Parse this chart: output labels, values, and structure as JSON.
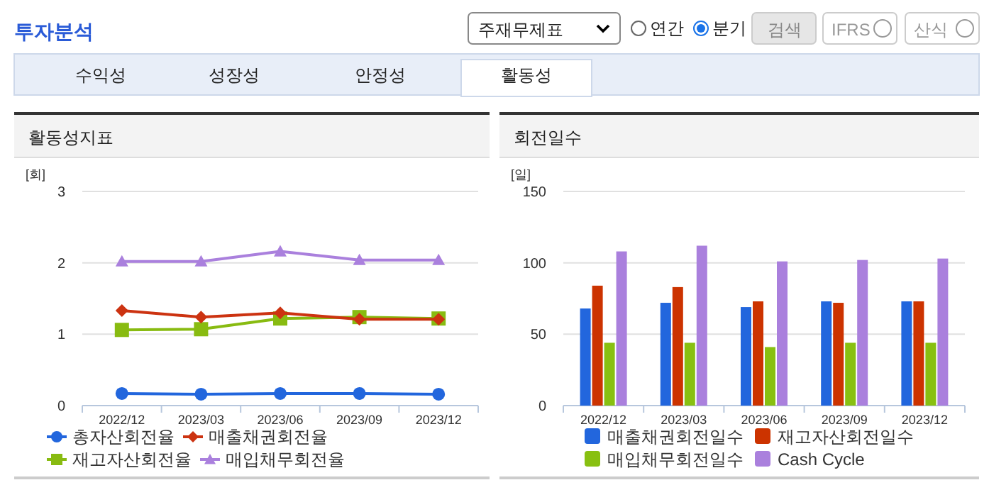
{
  "chart_data": [
    {
      "type": "other",
      "title": "투자분석",
      "annotations": [
        "주재무제표",
        "연간",
        "분기",
        "검색",
        "IFRS",
        "산식",
        "수익성",
        "성장성",
        "안정성",
        "활동성"
      ]
    },
    {
      "type": "line",
      "title": "활동성지표",
      "ylabel": "[회]",
      "categories": [
        "2022/12",
        "2023/03",
        "2023/06",
        "2023/09",
        "2023/12"
      ],
      "ylim": [
        0,
        3
      ],
      "yticks": [
        0,
        1,
        2,
        3
      ],
      "grid": "y",
      "legend": "bottom",
      "series": [
        {
          "name": "총자산회전율",
          "color": "#2266dd",
          "marker": "circle",
          "values": [
            0.17,
            0.16,
            0.17,
            0.17,
            0.16
          ]
        },
        {
          "name": "매출채권회전율",
          "color": "#cc3311",
          "marker": "diamond",
          "values": [
            1.33,
            1.24,
            1.3,
            1.21,
            1.21
          ]
        },
        {
          "name": "재고자산회전율",
          "color": "#88bb11",
          "marker": "square",
          "values": [
            1.06,
            1.07,
            1.22,
            1.24,
            1.22
          ]
        },
        {
          "name": "매입채무회전율",
          "color": "#aa80dd",
          "marker": "triangle",
          "values": [
            2.02,
            2.02,
            2.16,
            2.04,
            2.04
          ]
        }
      ]
    },
    {
      "type": "bar",
      "title": "회전일수",
      "ylabel": "[일]",
      "categories": [
        "2022/12",
        "2023/03",
        "2023/06",
        "2023/09",
        "2023/12"
      ],
      "ylim": [
        0,
        150
      ],
      "yticks": [
        0,
        50,
        100,
        150
      ],
      "grid": "y",
      "legend": "bottom",
      "series": [
        {
          "name": "매출채권회전일수",
          "color": "#2266dd",
          "values": [
            68,
            72,
            69,
            73,
            73
          ]
        },
        {
          "name": "재고자산회전일수",
          "color": "#cc3300",
          "values": [
            84,
            83,
            73,
            72,
            73
          ]
        },
        {
          "name": "매입채무회전일수",
          "color": "#88c011",
          "values": [
            44,
            44,
            41,
            44,
            44
          ]
        },
        {
          "name": "Cash Cycle",
          "color": "#aa80dd",
          "values": [
            108,
            112,
            101,
            102,
            103
          ]
        }
      ]
    }
  ]
}
